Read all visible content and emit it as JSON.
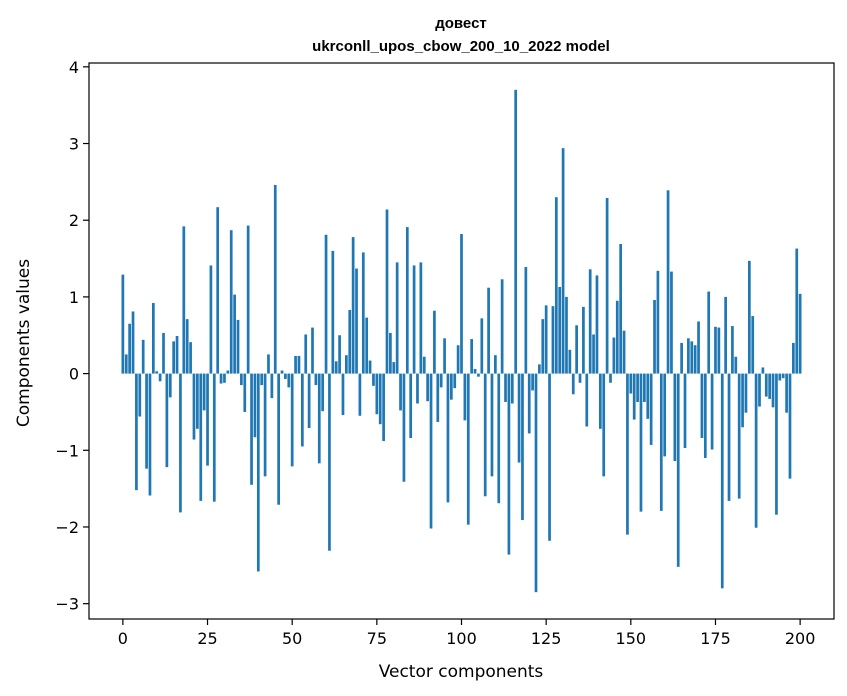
{
  "chart_data": {
    "type": "bar",
    "title": [
      "довест",
      "ukrconll_upos_cbow_200_10_2022 model"
    ],
    "xlabel": "Vector components",
    "ylabel": "Components values",
    "xlim": [
      -10,
      210
    ],
    "ylim": [
      -3.2,
      4.05
    ],
    "xticks": [
      0,
      25,
      50,
      75,
      100,
      125,
      150,
      175,
      200
    ],
    "yticks": [
      -3,
      -2,
      -1,
      0,
      1,
      2,
      3,
      4
    ],
    "xtick_labels": [
      "0",
      "25",
      "50",
      "75",
      "100",
      "125",
      "150",
      "175",
      "200"
    ],
    "ytick_labels": [
      "−3",
      "−2",
      "−1",
      "0",
      "1",
      "2",
      "3",
      "4"
    ],
    "grid": false,
    "bar_color": "#1f77b4",
    "values": [
      1.29,
      0.25,
      0.65,
      0.81,
      -1.52,
      -0.56,
      0.44,
      -1.24,
      -1.59,
      0.92,
      0.03,
      -0.1,
      0.53,
      -1.22,
      -0.31,
      0.42,
      0.49,
      -1.81,
      1.92,
      0.71,
      0.41,
      -0.86,
      -0.72,
      -1.66,
      -0.48,
      -1.2,
      1.41,
      -1.67,
      2.17,
      -0.13,
      -0.12,
      0.04,
      1.87,
      1.03,
      0.7,
      -0.15,
      -0.5,
      1.93,
      -1.45,
      -0.83,
      -2.58,
      -0.15,
      -1.34,
      0.25,
      -0.32,
      2.46,
      -1.71,
      0.04,
      -0.07,
      -0.18,
      -1.21,
      0.23,
      0.23,
      -0.95,
      0.51,
      -0.71,
      0.6,
      -0.15,
      -1.17,
      -0.49,
      1.81,
      -2.31,
      1.6,
      0.16,
      0.5,
      -0.54,
      0.24,
      0.83,
      1.78,
      1.37,
      -0.55,
      1.58,
      0.73,
      0.17,
      -0.16,
      -0.53,
      -0.66,
      -0.88,
      2.14,
      0.53,
      0.15,
      1.45,
      -0.48,
      -1.41,
      1.91,
      -0.84,
      1.41,
      -0.39,
      1.45,
      0.22,
      -0.36,
      -2.02,
      0.82,
      -0.63,
      -0.18,
      0.46,
      -1.68,
      -0.34,
      -0.19,
      0.37,
      1.82,
      -0.61,
      -1.97,
      0.45,
      0.06,
      -0.04,
      0.72,
      -1.6,
      1.12,
      -1.34,
      0.24,
      -1.69,
      1.23,
      -0.37,
      -2.36,
      -0.39,
      3.7,
      -1.16,
      -1.91,
      1.39,
      -0.78,
      -0.22,
      -2.85,
      0.12,
      0.71,
      0.89,
      -2.18,
      0.88,
      2.3,
      1.13,
      2.94,
      1.0,
      0.31,
      -0.27,
      0.63,
      -0.12,
      0.87,
      -0.69,
      1.36,
      0.51,
      1.28,
      -0.72,
      -1.34,
      2.29,
      -0.12,
      0.47,
      0.95,
      1.69,
      0.56,
      -2.1,
      -0.26,
      -0.6,
      -0.37,
      -1.8,
      -0.37,
      -0.59,
      -0.93,
      0.96,
      1.34,
      -1.79,
      -1.08,
      2.39,
      1.33,
      -1.14,
      -2.52,
      0.4,
      -0.97,
      0.46,
      0.42,
      0.37,
      0.68,
      -0.84,
      -1.1,
      1.07,
      -0.99,
      0.61,
      0.6,
      -2.8,
      1.0,
      -1.66,
      0.62,
      0.22,
      -1.63,
      -0.7,
      -0.51,
      1.47,
      0.75,
      -2.01,
      -0.43,
      0.08,
      -0.3,
      -0.33,
      -0.44,
      -1.84,
      -0.09,
      -0.06,
      -0.51,
      -1.37,
      0.4,
      1.63,
      1.04
    ]
  }
}
